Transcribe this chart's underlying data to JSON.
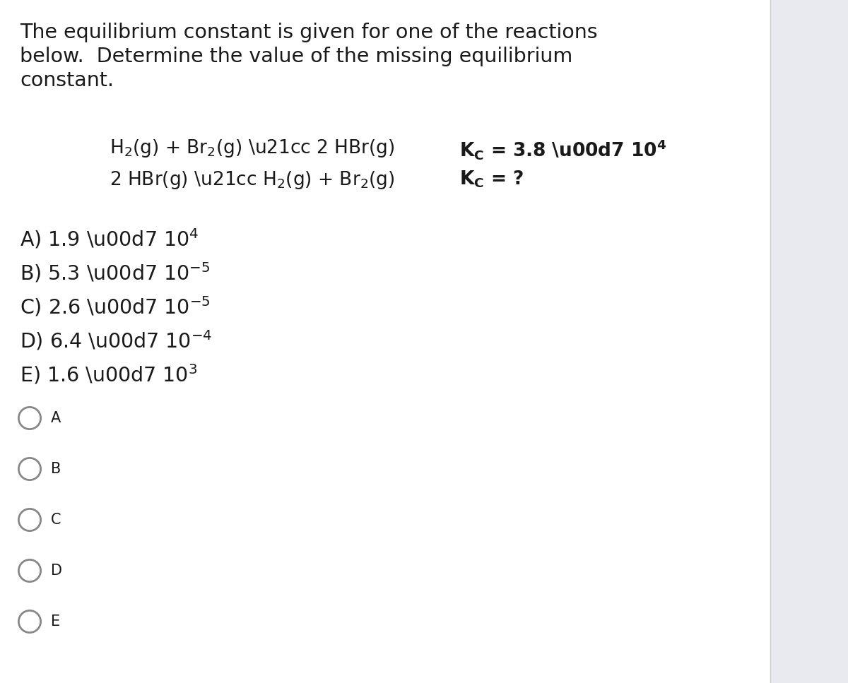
{
  "bg_color": "#ffffff",
  "right_panel_color": "#e8eaf0",
  "text_color": "#1a1a1a",
  "radio_color": "#888888",
  "title_line1": "The equilibrium constant is given for one of the reactions",
  "title_line2": "below.  Determine the value of the missing equilibrium",
  "title_line3": "constant.",
  "font_size_title": 20.5,
  "font_size_reactions": 19,
  "font_size_kc": 19,
  "font_size_options": 20.5,
  "font_size_radio_label": 15
}
